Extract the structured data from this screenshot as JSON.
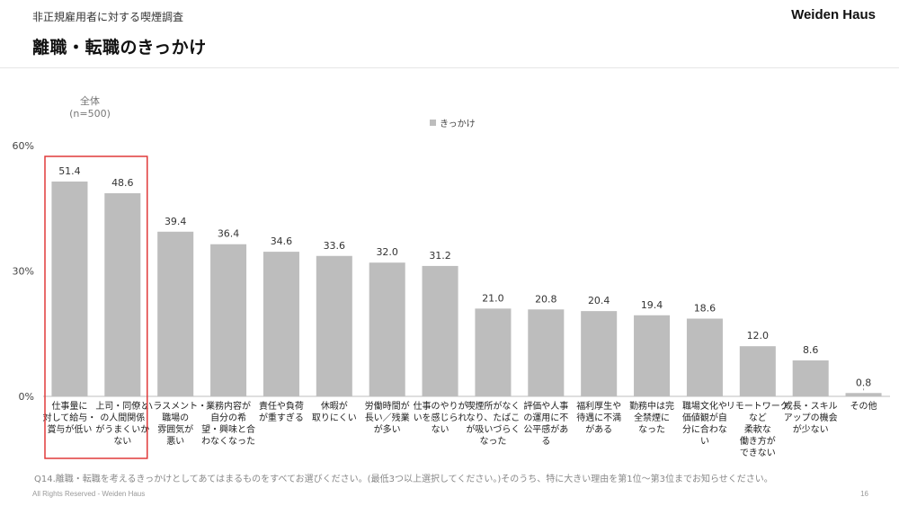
{
  "header": {
    "subtitle": "非正規雇用者に対する喫煙調査",
    "brand": "Weiden Haus",
    "title": "離職・転職のきっかけ"
  },
  "chart_data": {
    "type": "bar",
    "group_label": [
      "全体",
      "(n=500)"
    ],
    "series": [
      {
        "name": "きっかけ",
        "values": [
          51.4,
          48.6,
          39.4,
          36.4,
          34.6,
          33.6,
          32.0,
          31.2,
          21.0,
          20.8,
          20.4,
          19.4,
          18.6,
          12.0,
          8.6,
          0.8
        ]
      }
    ],
    "categories": [
      [
        "仕事量に",
        "対して給与・",
        "賞与が低い"
      ],
      [
        "上司・同僚と",
        "の人間関係",
        "がうまくいか",
        "ない"
      ],
      [
        "ハラスメント・",
        "職場の",
        "雰囲気が",
        "悪い"
      ],
      [
        "業務内容が",
        "自分の希",
        "望・興味と合",
        "わなくなった"
      ],
      [
        "責任や負荷",
        "が重すぎる"
      ],
      [
        "休暇が",
        "取りにくい"
      ],
      [
        "労働時間が",
        "長い／残業",
        "が多い"
      ],
      [
        "仕事のやりが",
        "いを感じられ",
        "ない"
      ],
      [
        "喫煙所がなく",
        "なり、たばこ",
        "が吸いづらく",
        "なった"
      ],
      [
        "評価や人事",
        "の運用に不",
        "公平感があ",
        "る"
      ],
      [
        "福利厚生や",
        "待遇に不満",
        "がある"
      ],
      [
        "勤務中は完",
        "全禁煙に",
        "なった"
      ],
      [
        "職場文化や",
        "価値観が自",
        "分に合わな",
        "い"
      ],
      [
        "リモートワーク",
        "など",
        "柔軟な",
        "働き方が",
        "できない"
      ],
      [
        "成長・スキル",
        "アップの機会",
        "が少ない"
      ],
      [
        "その他"
      ]
    ],
    "value_labels": [
      "51.4",
      "48.6",
      "39.4",
      "36.4",
      "34.6",
      "33.6",
      "32.0",
      "31.2",
      "21.0",
      "20.8",
      "20.4",
      "19.4",
      "18.6",
      "12.0",
      "8.6",
      "0.8"
    ],
    "y_ticks": [
      {
        "value": 0,
        "label": "0%"
      },
      {
        "value": 30,
        "label": "30%"
      },
      {
        "value": 60,
        "label": "60%"
      }
    ],
    "ylim": [
      0,
      60
    ],
    "highlighted_indices": [
      0,
      1
    ],
    "grid": false,
    "legend_position": "top-center",
    "colors": {
      "bar": "#bdbdbd",
      "highlight_border": "#e03a3a",
      "axis": "#bfbfbf"
    }
  },
  "footer": {
    "question": "Q14.離職・転職を考えるきっかけとしてあてはまるものをすべてお選びください。(最低3つ以上選択してください。)そのうち、特に大きい理由を第1位～第3位までお知らせください。",
    "copyright": "All Rights Reserved - Weiden Haus",
    "page": "16"
  }
}
